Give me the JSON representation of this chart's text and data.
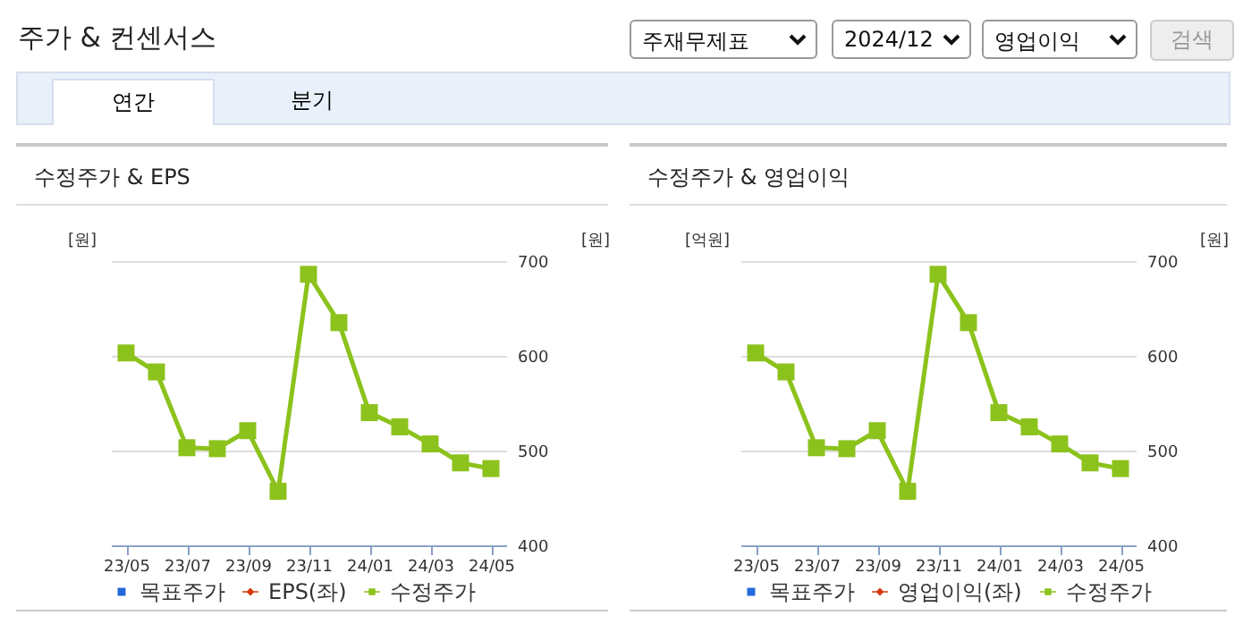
{
  "chart_data": [
    {
      "type": "other",
      "title": "주가 & 컨센서스",
      "annotations": [
        "주재무제표",
        "2024/12",
        "영업이익",
        "검색",
        "연간",
        "분기"
      ]
    },
    {
      "type": "line",
      "title": "수정주가 & EPS",
      "ylabel": "[원]",
      "y2label": "[원]",
      "categories": [
        "23/05",
        null,
        "23/07",
        null,
        "23/09",
        null,
        "23/11",
        null,
        "24/01",
        null,
        "24/03",
        null,
        "24/05"
      ],
      "y2lim": [
        400,
        700
      ],
      "y2ticks": [
        400,
        500,
        600,
        700
      ],
      "grid": "y",
      "legend": "bottom",
      "marker": "square",
      "series": [
        {
          "name": "목표주가",
          "type": "bar",
          "color": "#2369dc",
          "values": [
            null,
            null,
            null,
            null,
            null,
            null,
            null,
            null,
            null,
            null,
            null,
            null,
            null
          ]
        },
        {
          "name": "EPS(좌)",
          "color": "#d8380e",
          "marker": "diamond",
          "values": [
            null,
            null,
            null,
            null,
            null,
            null,
            null,
            null,
            null,
            null,
            null,
            null,
            null
          ]
        },
        {
          "name": "수정주가",
          "color": "#8cc21c",
          "axis": "y2",
          "values": [
            603,
            583,
            503,
            502,
            521,
            457,
            686,
            635,
            540,
            525,
            507,
            487,
            481
          ]
        }
      ]
    },
    {
      "type": "line",
      "title": "수정주가 & 영업이익",
      "ylabel": "[억원]",
      "y2label": "[원]",
      "categories": [
        "23/05",
        null,
        "23/07",
        null,
        "23/09",
        null,
        "23/11",
        null,
        "24/01",
        null,
        "24/03",
        null,
        "24/05"
      ],
      "y2lim": [
        400,
        700
      ],
      "y2ticks": [
        400,
        500,
        600,
        700
      ],
      "grid": "y",
      "legend": "bottom",
      "marker": "square",
      "series": [
        {
          "name": "목표주가",
          "type": "bar",
          "color": "#2369dc",
          "values": [
            null,
            null,
            null,
            null,
            null,
            null,
            null,
            null,
            null,
            null,
            null,
            null,
            null
          ]
        },
        {
          "name": "영업이익(좌)",
          "color": "#d8380e",
          "marker": "diamond",
          "values": [
            null,
            null,
            null,
            null,
            null,
            null,
            null,
            null,
            null,
            null,
            null,
            null,
            null
          ]
        },
        {
          "name": "수정주가",
          "color": "#8cc21c",
          "axis": "y2",
          "values": [
            603,
            583,
            503,
            502,
            521,
            457,
            686,
            635,
            540,
            525,
            507,
            487,
            481
          ]
        }
      ]
    }
  ]
}
